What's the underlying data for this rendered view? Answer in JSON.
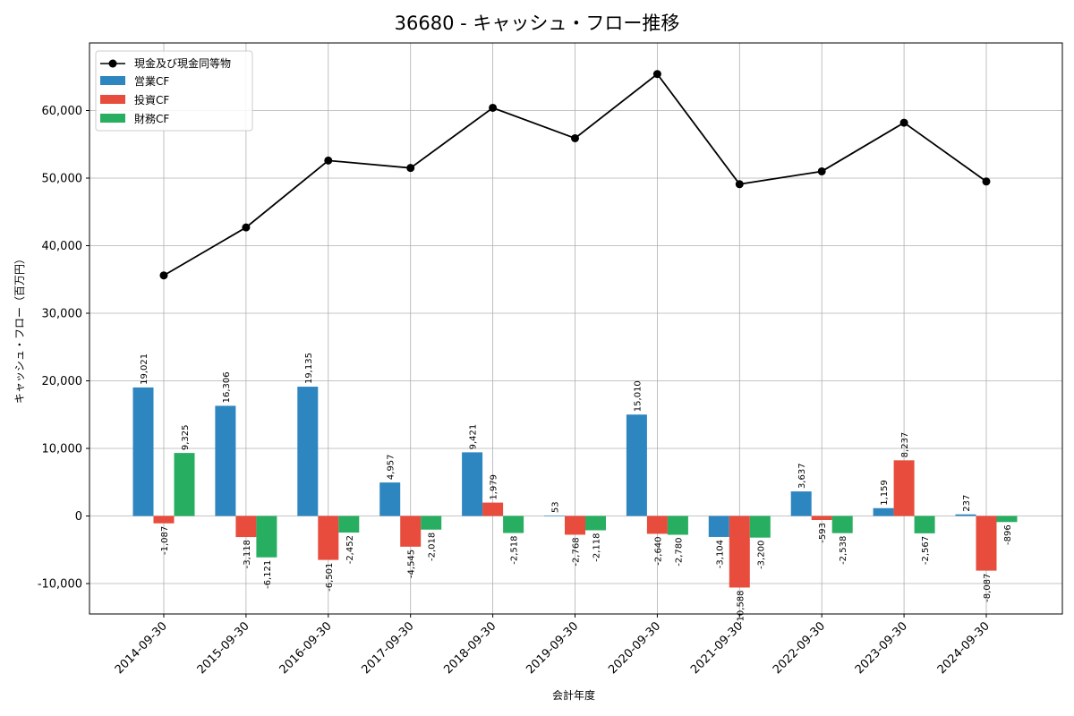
{
  "chart_data": {
    "type": "bar",
    "title": "36680 - キャッシュ・フロー推移",
    "xlabel": "会計年度",
    "ylabel": "キャッシュ・フロー（百万円）",
    "ylim": [
      -14500,
      70000
    ],
    "yticks": [
      -10000,
      0,
      10000,
      20000,
      30000,
      40000,
      50000,
      60000
    ],
    "ytick_labels": [
      "-10,000",
      "0",
      "10,000",
      "20,000",
      "30,000",
      "40,000",
      "50,000",
      "60,000"
    ],
    "grid": true,
    "legend_position": "top-left",
    "categories": [
      "2014-09-30",
      "2015-09-30",
      "2016-09-30",
      "2017-09-30",
      "2018-09-30",
      "2019-09-30",
      "2020-09-30",
      "2021-09-30",
      "2022-09-30",
      "2023-09-30",
      "2024-09-30"
    ],
    "line_series": {
      "name": "現金及び現金同等物",
      "color": "#000000",
      "values": [
        35600,
        42700,
        52600,
        51500,
        60400,
        55900,
        65400,
        49100,
        51000,
        58200,
        49500
      ]
    },
    "series": [
      {
        "name": "営業CF",
        "color": "#2e86c1",
        "values": [
          19021,
          16306,
          19135,
          4957,
          9421,
          53,
          15010,
          -3104,
          3637,
          1159,
          237
        ],
        "labels": [
          "19,021",
          "16,306",
          "19,135",
          "4,957",
          "9,421",
          "53",
          "15,010",
          "-3,104",
          "3,637",
          "1,159",
          "237"
        ]
      },
      {
        "name": "投資CF",
        "color": "#e74c3c",
        "values": [
          -1087,
          -3118,
          -6501,
          -4545,
          1979,
          -2768,
          -2640,
          -10588,
          -593,
          8237,
          -8087
        ],
        "labels": [
          "-1,087",
          "-3,118",
          "-6,501",
          "-4,545",
          "1,979",
          "-2,768",
          "-2,640",
          "-10,588",
          "-593",
          "8,237",
          "-8,087"
        ]
      },
      {
        "name": "財務CF",
        "color": "#27ae60",
        "values": [
          9325,
          -6121,
          -2452,
          -2018,
          -2518,
          -2118,
          -2780,
          -3200,
          -2538,
          -2567,
          -896
        ],
        "labels": [
          "9,325",
          "-6,121",
          "-2,452",
          "-2,018",
          "-2,518",
          "-2,118",
          "-2,780",
          "-3,200",
          "-2,538",
          "-2,567",
          "-896"
        ]
      }
    ]
  }
}
